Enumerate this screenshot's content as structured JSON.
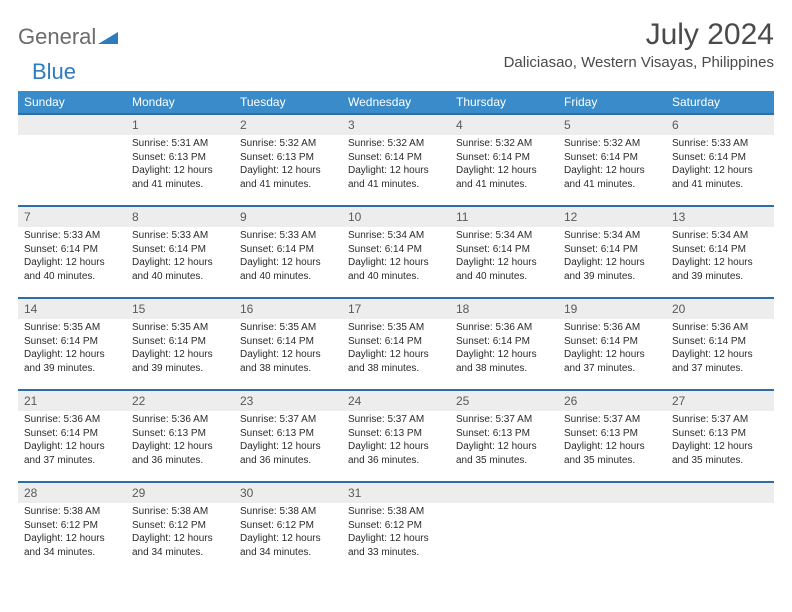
{
  "logo": {
    "part1": "General",
    "part2": "Blue"
  },
  "title": "July 2024",
  "location": "Daliciasao, Western Visayas, Philippines",
  "colors": {
    "header_bg": "#3a8bca",
    "header_text": "#ffffff",
    "numrow_bg": "#ededed",
    "numrow_border": "#2f6ea5",
    "title_color": "#4a4a4a",
    "logo_gray": "#6b6b6b",
    "logo_blue": "#2f7bbf",
    "body_text": "#2b2b2b"
  },
  "day_names": [
    "Sunday",
    "Monday",
    "Tuesday",
    "Wednesday",
    "Thursday",
    "Friday",
    "Saturday"
  ],
  "weeks": [
    {
      "nums": [
        "",
        "1",
        "2",
        "3",
        "4",
        "5",
        "6"
      ],
      "cells": [
        null,
        {
          "sunrise": "Sunrise: 5:31 AM",
          "sunset": "Sunset: 6:13 PM",
          "day1": "Daylight: 12 hours",
          "day2": "and 41 minutes."
        },
        {
          "sunrise": "Sunrise: 5:32 AM",
          "sunset": "Sunset: 6:13 PM",
          "day1": "Daylight: 12 hours",
          "day2": "and 41 minutes."
        },
        {
          "sunrise": "Sunrise: 5:32 AM",
          "sunset": "Sunset: 6:14 PM",
          "day1": "Daylight: 12 hours",
          "day2": "and 41 minutes."
        },
        {
          "sunrise": "Sunrise: 5:32 AM",
          "sunset": "Sunset: 6:14 PM",
          "day1": "Daylight: 12 hours",
          "day2": "and 41 minutes."
        },
        {
          "sunrise": "Sunrise: 5:32 AM",
          "sunset": "Sunset: 6:14 PM",
          "day1": "Daylight: 12 hours",
          "day2": "and 41 minutes."
        },
        {
          "sunrise": "Sunrise: 5:33 AM",
          "sunset": "Sunset: 6:14 PM",
          "day1": "Daylight: 12 hours",
          "day2": "and 41 minutes."
        }
      ]
    },
    {
      "nums": [
        "7",
        "8",
        "9",
        "10",
        "11",
        "12",
        "13"
      ],
      "cells": [
        {
          "sunrise": "Sunrise: 5:33 AM",
          "sunset": "Sunset: 6:14 PM",
          "day1": "Daylight: 12 hours",
          "day2": "and 40 minutes."
        },
        {
          "sunrise": "Sunrise: 5:33 AM",
          "sunset": "Sunset: 6:14 PM",
          "day1": "Daylight: 12 hours",
          "day2": "and 40 minutes."
        },
        {
          "sunrise": "Sunrise: 5:33 AM",
          "sunset": "Sunset: 6:14 PM",
          "day1": "Daylight: 12 hours",
          "day2": "and 40 minutes."
        },
        {
          "sunrise": "Sunrise: 5:34 AM",
          "sunset": "Sunset: 6:14 PM",
          "day1": "Daylight: 12 hours",
          "day2": "and 40 minutes."
        },
        {
          "sunrise": "Sunrise: 5:34 AM",
          "sunset": "Sunset: 6:14 PM",
          "day1": "Daylight: 12 hours",
          "day2": "and 40 minutes."
        },
        {
          "sunrise": "Sunrise: 5:34 AM",
          "sunset": "Sunset: 6:14 PM",
          "day1": "Daylight: 12 hours",
          "day2": "and 39 minutes."
        },
        {
          "sunrise": "Sunrise: 5:34 AM",
          "sunset": "Sunset: 6:14 PM",
          "day1": "Daylight: 12 hours",
          "day2": "and 39 minutes."
        }
      ]
    },
    {
      "nums": [
        "14",
        "15",
        "16",
        "17",
        "18",
        "19",
        "20"
      ],
      "cells": [
        {
          "sunrise": "Sunrise: 5:35 AM",
          "sunset": "Sunset: 6:14 PM",
          "day1": "Daylight: 12 hours",
          "day2": "and 39 minutes."
        },
        {
          "sunrise": "Sunrise: 5:35 AM",
          "sunset": "Sunset: 6:14 PM",
          "day1": "Daylight: 12 hours",
          "day2": "and 39 minutes."
        },
        {
          "sunrise": "Sunrise: 5:35 AM",
          "sunset": "Sunset: 6:14 PM",
          "day1": "Daylight: 12 hours",
          "day2": "and 38 minutes."
        },
        {
          "sunrise": "Sunrise: 5:35 AM",
          "sunset": "Sunset: 6:14 PM",
          "day1": "Daylight: 12 hours",
          "day2": "and 38 minutes."
        },
        {
          "sunrise": "Sunrise: 5:36 AM",
          "sunset": "Sunset: 6:14 PM",
          "day1": "Daylight: 12 hours",
          "day2": "and 38 minutes."
        },
        {
          "sunrise": "Sunrise: 5:36 AM",
          "sunset": "Sunset: 6:14 PM",
          "day1": "Daylight: 12 hours",
          "day2": "and 37 minutes."
        },
        {
          "sunrise": "Sunrise: 5:36 AM",
          "sunset": "Sunset: 6:14 PM",
          "day1": "Daylight: 12 hours",
          "day2": "and 37 minutes."
        }
      ]
    },
    {
      "nums": [
        "21",
        "22",
        "23",
        "24",
        "25",
        "26",
        "27"
      ],
      "cells": [
        {
          "sunrise": "Sunrise: 5:36 AM",
          "sunset": "Sunset: 6:14 PM",
          "day1": "Daylight: 12 hours",
          "day2": "and 37 minutes."
        },
        {
          "sunrise": "Sunrise: 5:36 AM",
          "sunset": "Sunset: 6:13 PM",
          "day1": "Daylight: 12 hours",
          "day2": "and 36 minutes."
        },
        {
          "sunrise": "Sunrise: 5:37 AM",
          "sunset": "Sunset: 6:13 PM",
          "day1": "Daylight: 12 hours",
          "day2": "and 36 minutes."
        },
        {
          "sunrise": "Sunrise: 5:37 AM",
          "sunset": "Sunset: 6:13 PM",
          "day1": "Daylight: 12 hours",
          "day2": "and 36 minutes."
        },
        {
          "sunrise": "Sunrise: 5:37 AM",
          "sunset": "Sunset: 6:13 PM",
          "day1": "Daylight: 12 hours",
          "day2": "and 35 minutes."
        },
        {
          "sunrise": "Sunrise: 5:37 AM",
          "sunset": "Sunset: 6:13 PM",
          "day1": "Daylight: 12 hours",
          "day2": "and 35 minutes."
        },
        {
          "sunrise": "Sunrise: 5:37 AM",
          "sunset": "Sunset: 6:13 PM",
          "day1": "Daylight: 12 hours",
          "day2": "and 35 minutes."
        }
      ]
    },
    {
      "nums": [
        "28",
        "29",
        "30",
        "31",
        "",
        "",
        ""
      ],
      "cells": [
        {
          "sunrise": "Sunrise: 5:38 AM",
          "sunset": "Sunset: 6:12 PM",
          "day1": "Daylight: 12 hours",
          "day2": "and 34 minutes."
        },
        {
          "sunrise": "Sunrise: 5:38 AM",
          "sunset": "Sunset: 6:12 PM",
          "day1": "Daylight: 12 hours",
          "day2": "and 34 minutes."
        },
        {
          "sunrise": "Sunrise: 5:38 AM",
          "sunset": "Sunset: 6:12 PM",
          "day1": "Daylight: 12 hours",
          "day2": "and 34 minutes."
        },
        {
          "sunrise": "Sunrise: 5:38 AM",
          "sunset": "Sunset: 6:12 PM",
          "day1": "Daylight: 12 hours",
          "day2": "and 33 minutes."
        },
        null,
        null,
        null
      ]
    }
  ]
}
